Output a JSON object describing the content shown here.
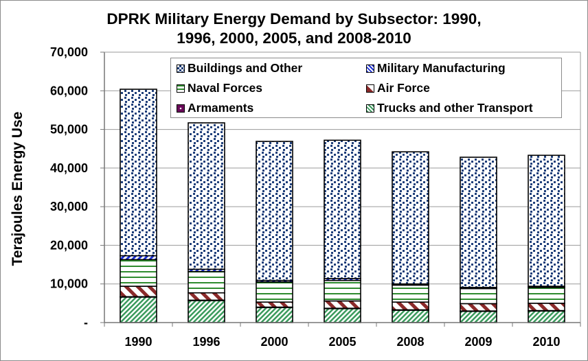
{
  "chart_data": {
    "type": "bar",
    "stacked": true,
    "title": "DPRK Military Energy Demand by Subsector: 1990, 1996, 2000, 2005, and 2008-2010",
    "title_lines": [
      "DPRK Military Energy Demand by Subsector: 1990,",
      "1996, 2000, 2005, and 2008-2010"
    ],
    "xlabel": "",
    "ylabel": "Terajoules Energy Use",
    "ylim": [
      0,
      70000
    ],
    "yticks": [
      0,
      10000,
      20000,
      30000,
      40000,
      50000,
      60000,
      70000
    ],
    "ytick_labels": [
      "-",
      "10,000",
      "20,000",
      "30,000",
      "40,000",
      "50,000",
      "60,000",
      "70,000"
    ],
    "grid": true,
    "legend_position": "top-center-inside",
    "categories": [
      "1990",
      "1996",
      "2000",
      "2005",
      "2008",
      "2009",
      "2010"
    ],
    "series": [
      {
        "name": "Trucks and other Transport",
        "color": "#3a9a5c",
        "pattern": "diagonal-stripes",
        "values": [
          6600,
          5700,
          3900,
          3600,
          3200,
          2900,
          3000
        ]
      },
      {
        "name": "Armaments",
        "color": "#6a0a5a",
        "pattern": "dots",
        "values": [
          100,
          100,
          100,
          100,
          100,
          100,
          100
        ]
      },
      {
        "name": "Air Force",
        "color": "#8b2a2a",
        "pattern": "wide-diagonal",
        "values": [
          2700,
          1900,
          1300,
          1900,
          2000,
          1900,
          1900
        ]
      },
      {
        "name": "Naval Forces",
        "color": "#2e8b2e",
        "pattern": "horizontal-stripes",
        "values": [
          6900,
          5500,
          5200,
          5300,
          4400,
          3900,
          4100
        ]
      },
      {
        "name": "Military  Manufacturing",
        "color": "#1a2fd6",
        "pattern": "diagonal-stripes",
        "values": [
          1000,
          600,
          400,
          500,
          300,
          300,
          300
        ]
      },
      {
        "name": "Buildings and Other",
        "color": "#1f3f7a",
        "pattern": "squares",
        "values": [
          43100,
          37900,
          36000,
          35800,
          34200,
          33700,
          33900
        ]
      }
    ],
    "totals": [
      60400,
      51700,
      46900,
      47200,
      44200,
      42800,
      43300
    ]
  },
  "legend": {
    "items": [
      {
        "label": "Buildings and Other",
        "series_index": 5
      },
      {
        "label": "Military  Manufacturing",
        "series_index": 4
      },
      {
        "label": "Naval Forces",
        "series_index": 3
      },
      {
        "label": "Air Force",
        "series_index": 2
      },
      {
        "label": "Armaments",
        "series_index": 1
      },
      {
        "label": "Trucks and other Transport",
        "series_index": 0
      }
    ]
  }
}
